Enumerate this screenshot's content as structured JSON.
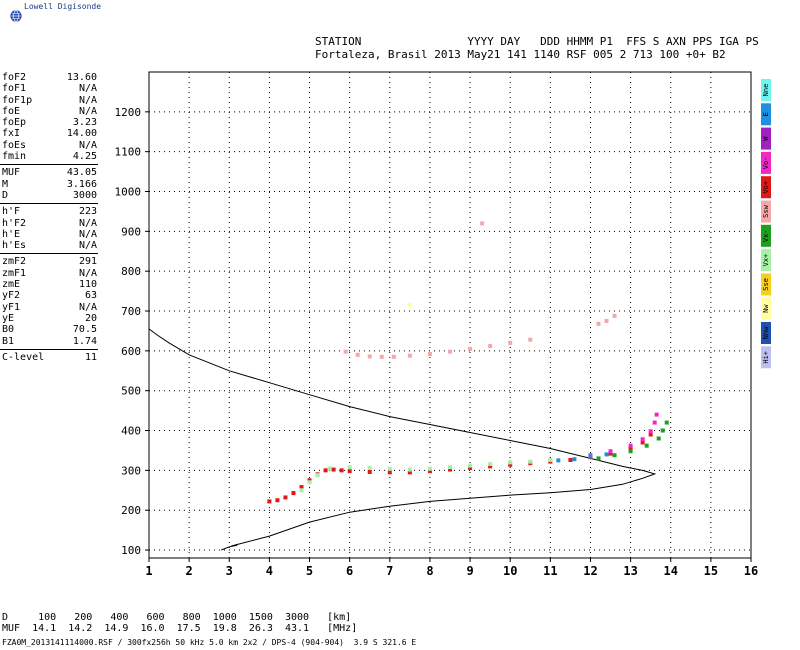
{
  "logo": {
    "text": "Lowell Digisonde",
    "icon": "globe-icon"
  },
  "header": {
    "line1": "STATION                YYYY DAY   DDD HHMM P1  FFS S AXN PPS IGA PS",
    "line2": "Fortaleza, Brasil 2013 May21 141 1140 RSF 005 2 713 100 +0+ B2"
  },
  "params": {
    "group1": [
      {
        "label": "foF2",
        "value": "13.60"
      },
      {
        "label": "foF1",
        "value": "N/A"
      },
      {
        "label": "foF1p",
        "value": "N/A"
      },
      {
        "label": "foE",
        "value": "N/A"
      },
      {
        "label": "foEp",
        "value": "3.23"
      },
      {
        "label": "fxI",
        "value": "14.00"
      },
      {
        "label": "foEs",
        "value": "N/A"
      },
      {
        "label": "fmin",
        "value": "4.25"
      }
    ],
    "group2": [
      {
        "label": "MUF",
        "value": "43.05"
      },
      {
        "label": "M",
        "value": "3.166"
      },
      {
        "label": "D",
        "value": "3000"
      }
    ],
    "group3": [
      {
        "label": "h'F",
        "value": "223"
      },
      {
        "label": "h'F2",
        "value": "N/A"
      },
      {
        "label": "h'E",
        "value": "N/A"
      },
      {
        "label": "h'Es",
        "value": "N/A"
      }
    ],
    "group4": [
      {
        "label": "zmF2",
        "value": "291"
      },
      {
        "label": "zmF1",
        "value": "N/A"
      },
      {
        "label": "zmE",
        "value": "110"
      },
      {
        "label": "yF2",
        "value": "63"
      },
      {
        "label": "yF1",
        "value": "N/A"
      },
      {
        "label": "yE",
        "value": "20"
      },
      {
        "label": "B0",
        "value": "70.5"
      },
      {
        "label": "B1",
        "value": "1.74"
      }
    ],
    "group5": [
      {
        "label": "C-level",
        "value": "11"
      }
    ]
  },
  "footer": {
    "row1": "D     100   200   400   600   800  1000  1500  3000   [km]",
    "row2": "MUF  14.1  14.2  14.9  16.0  17.5  19.8  26.3  43.1   [MHz]",
    "fileinfo": "FZA0M_2013141114000.RSF / 300fx256h 50 kHz 5.0 km 2x2 / DPS-4 (904-904)  3.9 S 321.6 E"
  },
  "chart_data": {
    "type": "scatter",
    "xlim": [
      1,
      16
    ],
    "ylim": [
      80,
      1300
    ],
    "x_ticks": [
      "1",
      "2",
      "3",
      "4",
      "5",
      "6",
      "7",
      "8",
      "9",
      "10",
      "11",
      "12",
      "13",
      "14",
      "15",
      "16"
    ],
    "y_ticks": [
      "100",
      "200",
      "300",
      "400",
      "500",
      "600",
      "700",
      "800",
      "900",
      "1000",
      "1100",
      "1200"
    ],
    "grid": true,
    "grid_style": "dotted",
    "legend": [
      {
        "label": "Nne",
        "color": "#6ff5f0"
      },
      {
        "label": "E",
        "color": "#1f8fe0"
      },
      {
        "label": "W",
        "color": "#a020c0"
      },
      {
        "label": "Vo-",
        "color": "#f028c8"
      },
      {
        "label": "Vo+",
        "color": "#e01818"
      },
      {
        "label": "Ssw",
        "color": "#f4a8a8"
      },
      {
        "label": "Vx-",
        "color": "#1ea01e"
      },
      {
        "label": "Vx+",
        "color": "#a8f0a8"
      },
      {
        "label": "Sse",
        "color": "#f4d020"
      },
      {
        "label": "Nw",
        "color": "#ffffa0"
      },
      {
        "label": "Nnw",
        "color": "#2050b0"
      },
      {
        "label": "Hi+",
        "color": "#c0c0f0"
      }
    ],
    "profile_curve": {
      "color": "#000000",
      "points": [
        [
          2.8,
          100
        ],
        [
          3.0,
          108
        ],
        [
          3.2,
          112
        ],
        [
          3.05,
          110
        ],
        [
          4.0,
          135
        ],
        [
          5.0,
          170
        ],
        [
          6.0,
          195
        ],
        [
          7.0,
          210
        ],
        [
          8.0,
          222
        ],
        [
          9.0,
          230
        ],
        [
          10.0,
          238
        ],
        [
          11.0,
          244
        ],
        [
          12.0,
          252
        ],
        [
          12.8,
          265
        ],
        [
          13.3,
          280
        ],
        [
          13.6,
          291
        ],
        [
          13.3,
          300
        ],
        [
          12.8,
          310
        ],
        [
          12.0,
          330
        ],
        [
          11.0,
          355
        ],
        [
          10.0,
          375
        ],
        [
          9.0,
          395
        ],
        [
          8.0,
          415
        ],
        [
          7.0,
          435
        ],
        [
          6.0,
          460
        ],
        [
          5.0,
          490
        ],
        [
          4.0,
          520
        ],
        [
          3.0,
          550
        ],
        [
          2.0,
          590
        ],
        [
          1.5,
          620
        ],
        [
          1.2,
          640
        ],
        [
          1.0,
          655
        ]
      ]
    },
    "series": [
      {
        "name": "Vo+",
        "color": "#e01818",
        "points": [
          [
            4.0,
            222
          ],
          [
            4.2,
            225
          ],
          [
            4.4,
            232
          ],
          [
            4.6,
            243
          ],
          [
            4.8,
            258
          ],
          [
            5.0,
            275
          ],
          [
            5.2,
            290
          ],
          [
            5.4,
            300
          ],
          [
            5.6,
            302
          ],
          [
            5.8,
            300
          ],
          [
            6.0,
            298
          ],
          [
            6.5,
            296
          ],
          [
            7.0,
            295
          ],
          [
            7.5,
            295
          ],
          [
            8.0,
            298
          ],
          [
            8.5,
            302
          ],
          [
            9.0,
            306
          ],
          [
            9.5,
            310
          ],
          [
            10.0,
            314
          ],
          [
            10.5,
            318
          ],
          [
            11.0,
            322
          ],
          [
            11.5,
            326
          ],
          [
            12.0,
            333
          ],
          [
            12.5,
            342
          ],
          [
            13.0,
            355
          ],
          [
            13.3,
            370
          ],
          [
            13.5,
            390
          ]
        ]
      },
      {
        "name": "Vx+",
        "color": "#a8f0a8",
        "points": [
          [
            4.8,
            250
          ],
          [
            5.0,
            270
          ],
          [
            5.2,
            288
          ],
          [
            5.5,
            305
          ],
          [
            6.0,
            308
          ],
          [
            6.5,
            306
          ],
          [
            7.0,
            304
          ],
          [
            7.5,
            302
          ],
          [
            8.0,
            304
          ],
          [
            8.5,
            308
          ],
          [
            9.0,
            312
          ],
          [
            9.5,
            316
          ],
          [
            10.0,
            320
          ],
          [
            10.5,
            322
          ],
          [
            11.0,
            326
          ]
        ]
      },
      {
        "name": "Vx-",
        "color": "#1ea01e",
        "points": [
          [
            12.2,
            330
          ],
          [
            12.6,
            338
          ],
          [
            13.0,
            348
          ],
          [
            13.4,
            362
          ],
          [
            13.7,
            380
          ],
          [
            13.8,
            400
          ],
          [
            13.9,
            420
          ]
        ]
      },
      {
        "name": "Vo-",
        "color": "#f028c8",
        "points": [
          [
            12.0,
            338
          ],
          [
            12.5,
            348
          ],
          [
            13.0,
            362
          ],
          [
            13.3,
            378
          ],
          [
            13.5,
            398
          ],
          [
            13.6,
            420
          ],
          [
            13.65,
            440
          ]
        ]
      },
      {
        "name": "E",
        "color": "#1f8fe0",
        "points": [
          [
            11.2,
            325
          ],
          [
            11.6,
            328
          ],
          [
            12.0,
            335
          ],
          [
            12.4,
            340
          ]
        ]
      },
      {
        "name": "Ssw",
        "color": "#f4a8a8",
        "points": [
          [
            5.9,
            598
          ],
          [
            6.2,
            590
          ],
          [
            6.5,
            586
          ],
          [
            6.8,
            585
          ],
          [
            7.1,
            585
          ],
          [
            7.5,
            588
          ],
          [
            8.0,
            592
          ],
          [
            8.5,
            598
          ],
          [
            9.0,
            605
          ],
          [
            9.5,
            612
          ],
          [
            10.0,
            620
          ],
          [
            10.5,
            628
          ],
          [
            9.3,
            920
          ],
          [
            12.2,
            668
          ],
          [
            12.4,
            675
          ],
          [
            12.6,
            688
          ]
        ]
      },
      {
        "name": "Nw",
        "color": "#ffffa0",
        "points": [
          [
            7.5,
            715
          ]
        ]
      }
    ]
  }
}
